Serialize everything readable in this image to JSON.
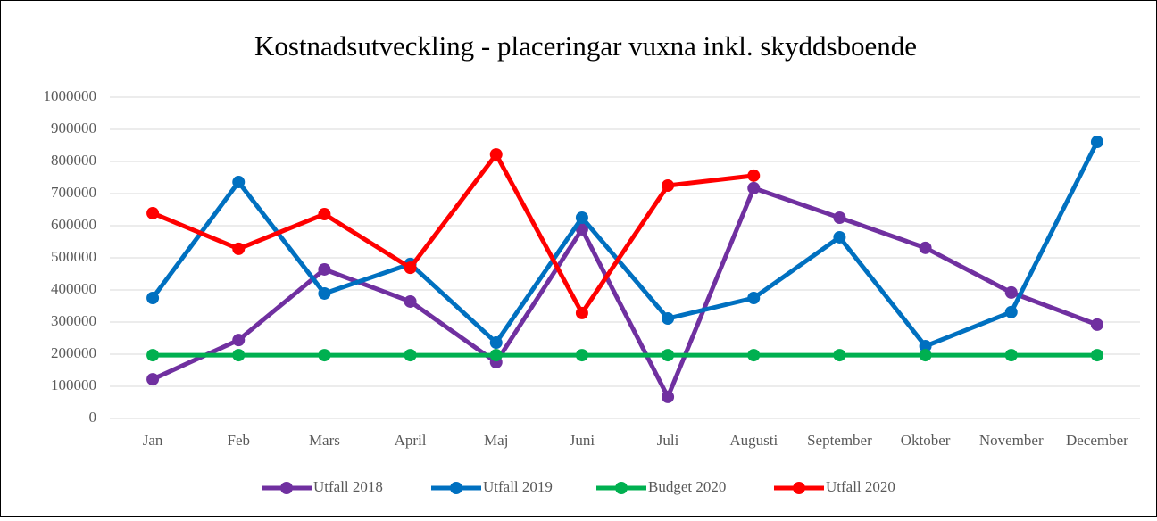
{
  "chart_data": {
    "type": "line",
    "title": "Kostnadsutveckling - placeringar vuxna inkl. skyddsboende",
    "categories": [
      "Jan",
      "Feb",
      "Mars",
      "April",
      "Maj",
      "Juni",
      "Juli",
      "Augusti",
      "September",
      "Oktober",
      "November",
      "December"
    ],
    "series": [
      {
        "name": "Utfall 2018",
        "color": "#7030a0",
        "values": [
          122000,
          244000,
          464000,
          364000,
          175000,
          589000,
          67000,
          717000,
          625000,
          531000,
          392000,
          292000
        ]
      },
      {
        "name": "Utfall 2019",
        "color": "#0070c0",
        "values": [
          375000,
          736000,
          389000,
          481000,
          236000,
          625000,
          311000,
          375000,
          564000,
          225000,
          331000,
          861000
        ]
      },
      {
        "name": "Budget 2020",
        "color": "#00b050",
        "values": [
          197000,
          197000,
          197000,
          197000,
          197000,
          197000,
          197000,
          197000,
          197000,
          197000,
          197000,
          197000
        ]
      },
      {
        "name": "Utfall 2020",
        "color": "#ff0000",
        "values": [
          639000,
          528000,
          636000,
          469000,
          822000,
          328000,
          725000,
          756000,
          null,
          null,
          null,
          null
        ]
      }
    ],
    "ylim": [
      0,
      1000000
    ],
    "yticks": [
      0,
      100000,
      200000,
      300000,
      400000,
      500000,
      600000,
      700000,
      800000,
      900000,
      1000000
    ],
    "grid": true,
    "legend": "bottom"
  }
}
